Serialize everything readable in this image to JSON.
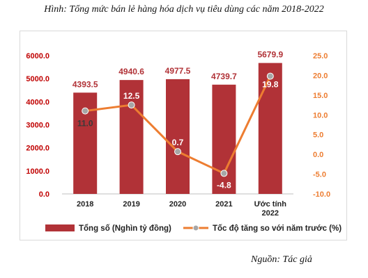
{
  "figure": {
    "title": "Hình: Tổng mức bán lẻ hàng hóa dịch vụ tiêu dùng các năm 2018-2022",
    "source": "Nguồn: Tác giả"
  },
  "chart_data": {
    "type": "bar+line",
    "categories": [
      "2018",
      "2019",
      "2020",
      "2021",
      "Ước tính 2022"
    ],
    "category_lines": [
      [
        "2018"
      ],
      [
        "2019"
      ],
      [
        "2020"
      ],
      [
        "2021"
      ],
      [
        "Ước tính",
        "2022"
      ]
    ],
    "series": [
      {
        "name": "Tổng số (Nghìn tỷ đồng)",
        "type": "bar",
        "axis": "left",
        "values": [
          4393.5,
          4940.6,
          4977.5,
          4739.7,
          5679.9
        ],
        "labels": [
          "4393.5",
          "4940.6",
          "4977.5",
          "4739.7",
          "5679.9"
        ],
        "color": "#b13237"
      },
      {
        "name": "Tốc độ tăng so với năm trước (%)",
        "type": "line",
        "axis": "right",
        "values": [
          11.0,
          12.5,
          0.7,
          -4.8,
          19.8
        ],
        "labels": [
          "11.0",
          "12.5",
          "0.7",
          "-4.8",
          "19.8"
        ],
        "color": "#ed7d31",
        "marker_color": "#a6a6a6"
      }
    ],
    "left_axis": {
      "range": [
        0,
        6000
      ],
      "ticks": [
        0,
        1000,
        2000,
        3000,
        4000,
        5000,
        6000
      ],
      "tick_labels": [
        "0.0",
        "1000.0",
        "2000.0",
        "3000.0",
        "4000.0",
        "5000.0",
        "6000.0"
      ],
      "color": "#c00000"
    },
    "right_axis": {
      "range": [
        -10,
        25
      ],
      "ticks": [
        -10,
        -5,
        0,
        5,
        10,
        15,
        20,
        25
      ],
      "tick_labels": [
        "-10.0",
        "-5.0",
        "0.0",
        "5.0",
        "10.0",
        "15.0",
        "20.0",
        "25.0"
      ],
      "color": "#ed7d31"
    },
    "legend_position": "bottom",
    "grid": false
  }
}
